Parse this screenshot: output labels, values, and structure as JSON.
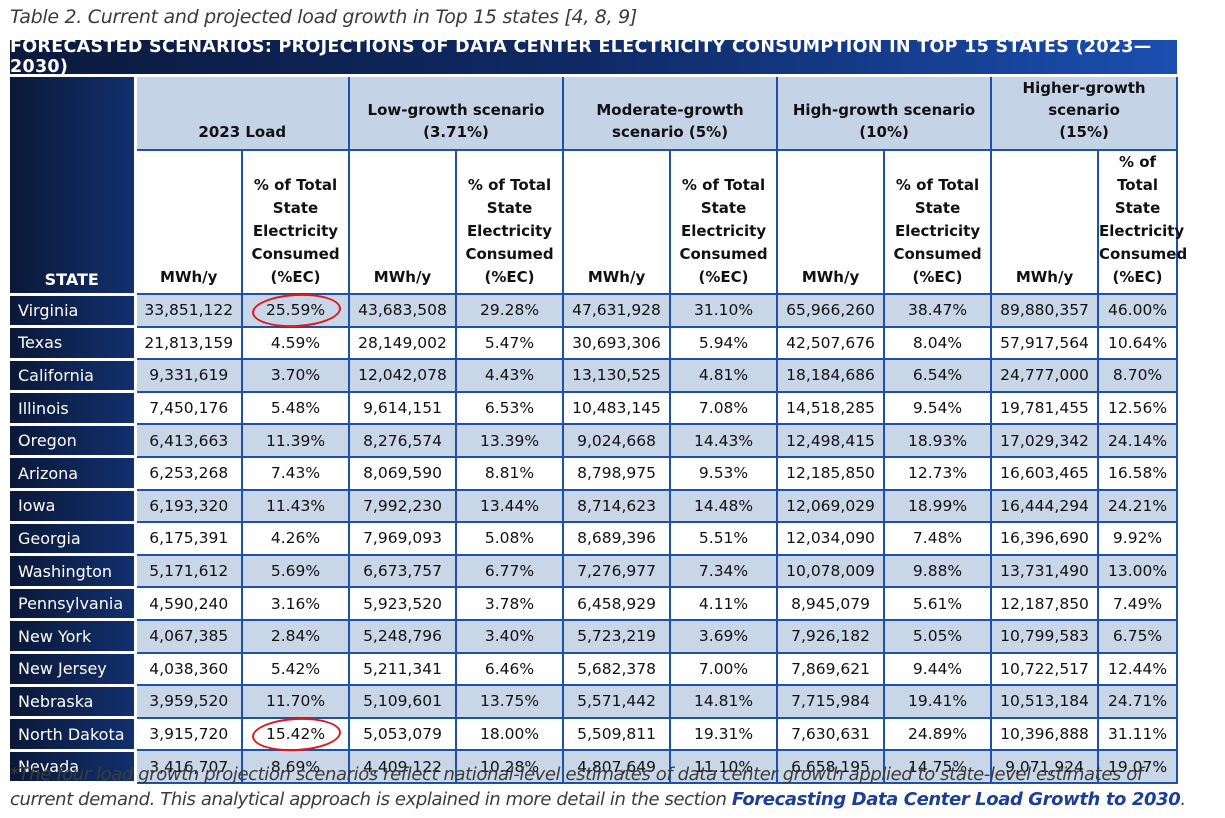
{
  "caption": "Table 2. Current and projected load growth in Top 15 states [4, 8, 9]",
  "table": {
    "title": "FORECASTED SCENARIOS: PROJECTIONS OF DATA CENTER ELECTRICITY CONSUMPTION IN TOP 15 STATES (2023—2030)",
    "state_header": "STATE",
    "groups": [
      {
        "label_line1": "",
        "label_line2": "2023 Load"
      },
      {
        "label_line1": "Low-growth scenario",
        "label_line2": "(3.71%)"
      },
      {
        "label_line1": "Moderate-growth",
        "label_line2": "scenario (5%)"
      },
      {
        "label_line1": "High-growth scenario",
        "label_line2": "(10%)"
      },
      {
        "label_line1": "Higher-growth scenario",
        "label_line2": "(15%)"
      }
    ],
    "sub_headers": {
      "mwh": "MWh/y",
      "pct_line1": "% of Total",
      "pct_line2": "State",
      "pct_line3": "Electricity",
      "pct_line4": "Consumed",
      "pct_line5": "(%EC)"
    },
    "rows": [
      {
        "state": "Virginia",
        "v": [
          "33,851,122",
          "25.59%",
          "43,683,508",
          "29.28%",
          "47,631,928",
          "31.10%",
          "65,966,260",
          "38.47%",
          "89,880,357",
          "46.00%"
        ]
      },
      {
        "state": "Texas",
        "v": [
          "21,813,159",
          "4.59%",
          "28,149,002",
          "5.47%",
          "30,693,306",
          "5.94%",
          "42,507,676",
          "8.04%",
          "57,917,564",
          "10.64%"
        ]
      },
      {
        "state": "California",
        "v": [
          "9,331,619",
          "3.70%",
          "12,042,078",
          "4.43%",
          "13,130,525",
          "4.81%",
          "18,184,686",
          "6.54%",
          "24,777,000",
          "8.70%"
        ]
      },
      {
        "state": "Illinois",
        "v": [
          "7,450,176",
          "5.48%",
          "9,614,151",
          "6.53%",
          "10,483,145",
          "7.08%",
          "14,518,285",
          "9.54%",
          "19,781,455",
          "12.56%"
        ]
      },
      {
        "state": "Oregon",
        "v": [
          "6,413,663",
          "11.39%",
          "8,276,574",
          "13.39%",
          "9,024,668",
          "14.43%",
          "12,498,415",
          "18.93%",
          "17,029,342",
          "24.14%"
        ]
      },
      {
        "state": "Arizona",
        "v": [
          "6,253,268",
          "7.43%",
          "8,069,590",
          "8.81%",
          "8,798,975",
          "9.53%",
          "12,185,850",
          "12.73%",
          "16,603,465",
          "16.58%"
        ]
      },
      {
        "state": "Iowa",
        "v": [
          "6,193,320",
          "11.43%",
          "7,992,230",
          "13.44%",
          "8,714,623",
          "14.48%",
          "12,069,029",
          "18.99%",
          "16,444,294",
          "24.21%"
        ]
      },
      {
        "state": "Georgia",
        "v": [
          "6,175,391",
          "4.26%",
          "7,969,093",
          "5.08%",
          "8,689,396",
          "5.51%",
          "12,034,090",
          "7.48%",
          "16,396,690",
          "9.92%"
        ]
      },
      {
        "state": "Washington",
        "v": [
          "5,171,612",
          "5.69%",
          "6,673,757",
          "6.77%",
          "7,276,977",
          "7.34%",
          "10,078,009",
          "9.88%",
          "13,731,490",
          "13.00%"
        ]
      },
      {
        "state": "Pennsylvania",
        "v": [
          "4,590,240",
          "3.16%",
          "5,923,520",
          "3.78%",
          "6,458,929",
          "4.11%",
          "8,945,079",
          "5.61%",
          "12,187,850",
          "7.49%"
        ]
      },
      {
        "state": "New York",
        "v": [
          "4,067,385",
          "2.84%",
          "5,248,796",
          "3.40%",
          "5,723,219",
          "3.69%",
          "7,926,182",
          "5.05%",
          "10,799,583",
          "6.75%"
        ]
      },
      {
        "state": "New Jersey",
        "v": [
          "4,038,360",
          "5.42%",
          "5,211,341",
          "6.46%",
          "5,682,378",
          "7.00%",
          "7,869,621",
          "9.44%",
          "10,722,517",
          "12.44%"
        ]
      },
      {
        "state": "Nebraska",
        "v": [
          "3,959,520",
          "11.70%",
          "5,109,601",
          "13.75%",
          "5,571,442",
          "14.81%",
          "7,715,984",
          "19.41%",
          "10,513,184",
          "24.71%"
        ]
      },
      {
        "state": "North Dakota",
        "v": [
          "3,915,720",
          "15.42%",
          "5,053,079",
          "18.00%",
          "5,509,811",
          "19.31%",
          "7,630,631",
          "24.89%",
          "10,396,888",
          "31.11%"
        ]
      },
      {
        "state": "Nevada",
        "v": [
          "3,416,707",
          "8.69%",
          "4,409,122",
          "10.28%",
          "4,807,649",
          "11.10%",
          "6,658,195",
          "14.75%",
          "9,071,924",
          "19.07%"
        ]
      }
    ],
    "annotations": {
      "circled_cells": [
        "Virginia 2023 %EC",
        "North Dakota 2023 %EC"
      ],
      "circle_color": "#e0161b"
    }
  },
  "footnote": {
    "text": "*The four load growth projection scenarios reflect national-level estimates of data center growth applied to state-level estimates of current demand. This analytical approach is explained in more detail in the section ",
    "link": "Forecasting Data Center Load Growth to 2030",
    "end": "."
  },
  "colors": {
    "header_navy": "#0b1a3d",
    "header_blue": "#1a4fb0",
    "shade_row": "#c9d6e8",
    "grid_line": "#1d50a8",
    "link": "#1b3f99"
  }
}
